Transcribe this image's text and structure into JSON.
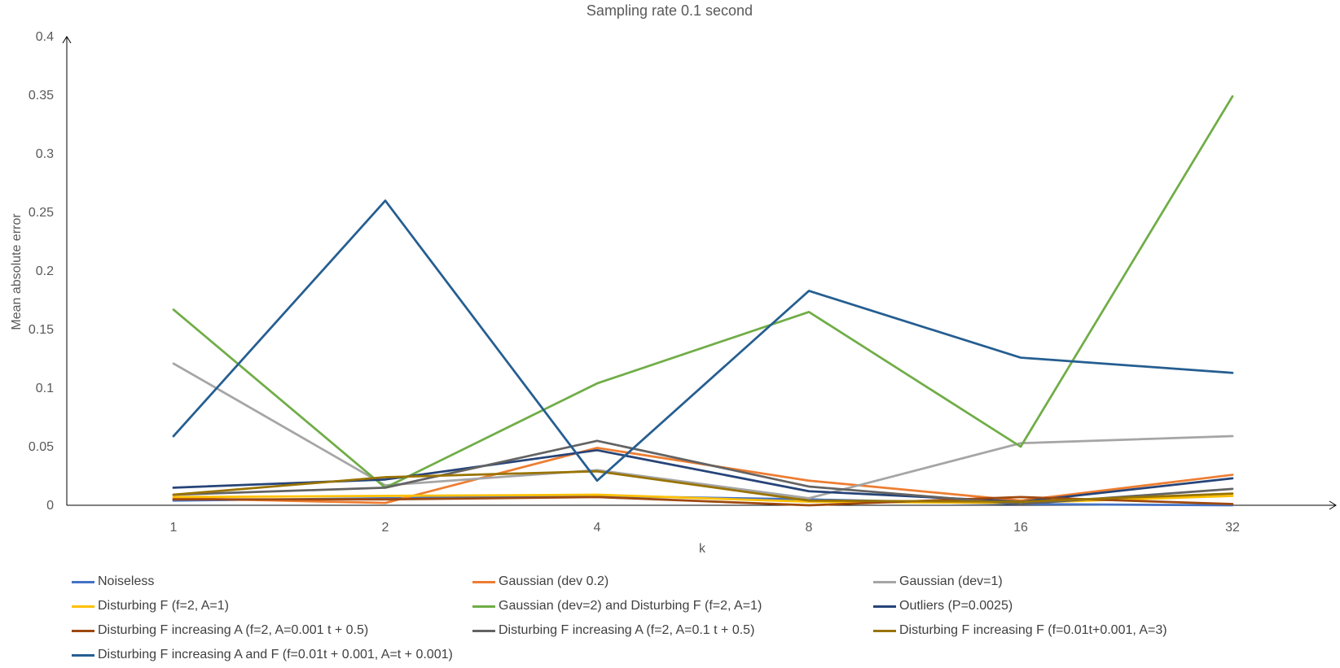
{
  "chart_data": {
    "type": "line",
    "title": "Sampling rate 0.1 second",
    "xlabel": "k",
    "ylabel": "Mean absolute error",
    "categories": [
      "1",
      "2",
      "4",
      "8",
      "16",
      "32"
    ],
    "ylim": [
      0,
      0.4
    ],
    "yticks": [
      "0",
      "0.05",
      "0.1",
      "0.15",
      "0.2",
      "0.25",
      "0.3",
      "0.35",
      "0.4"
    ],
    "grid": false,
    "legend_position": "bottom",
    "series": [
      {
        "name": "Noiseless",
        "color": "#4472C4",
        "values": [
          0.004,
          0.006,
          0.008,
          0.005,
          0.001,
          0.0
        ]
      },
      {
        "name": "Gaussian (dev 0.2)",
        "color": "#ED7D31",
        "values": [
          0.006,
          0.002,
          0.049,
          0.021,
          0.004,
          0.026
        ]
      },
      {
        "name": "Gaussian (dev=1)",
        "color": "#A5A5A5",
        "values": [
          0.121,
          0.017,
          0.03,
          0.006,
          0.053,
          0.059
        ]
      },
      {
        "name": "Disturbing F (f=2, A=1)",
        "color": "#FFC000",
        "values": [
          0.007,
          0.008,
          0.009,
          0.003,
          0.002,
          0.008
        ]
      },
      {
        "name": "Gaussian (dev=2) and Disturbing F (f=2, A=1)",
        "color": "#70AD47",
        "values": [
          0.167,
          0.015,
          0.104,
          0.165,
          0.05,
          0.349
        ]
      },
      {
        "name": "Outliers (P=0.0025)",
        "color": "#264478",
        "values": [
          0.015,
          0.022,
          0.047,
          0.012,
          0.003,
          0.023
        ]
      },
      {
        "name": "Disturbing F increasing A (f=2, A=0.001 t + 0.5)",
        "color": "#9E480E",
        "values": [
          0.005,
          0.005,
          0.007,
          0.0,
          0.007,
          0.001
        ]
      },
      {
        "name": "Disturbing F increasing A (f=2, A=0.1 t + 0.5)",
        "color": "#636363",
        "values": [
          0.009,
          0.015,
          0.055,
          0.016,
          0.001,
          0.014
        ]
      },
      {
        "name": "Disturbing F increasing F (f=0.01t+0.001, A=3)",
        "color": "#997300",
        "values": [
          0.009,
          0.024,
          0.029,
          0.004,
          0.003,
          0.01
        ]
      },
      {
        "name": "Disturbing F increasing A and F (f=0.01t + 0.001, A=t + 0.001)",
        "color": "#255E91",
        "values": [
          0.059,
          0.26,
          0.021,
          0.183,
          0.126,
          0.113
        ]
      }
    ]
  }
}
